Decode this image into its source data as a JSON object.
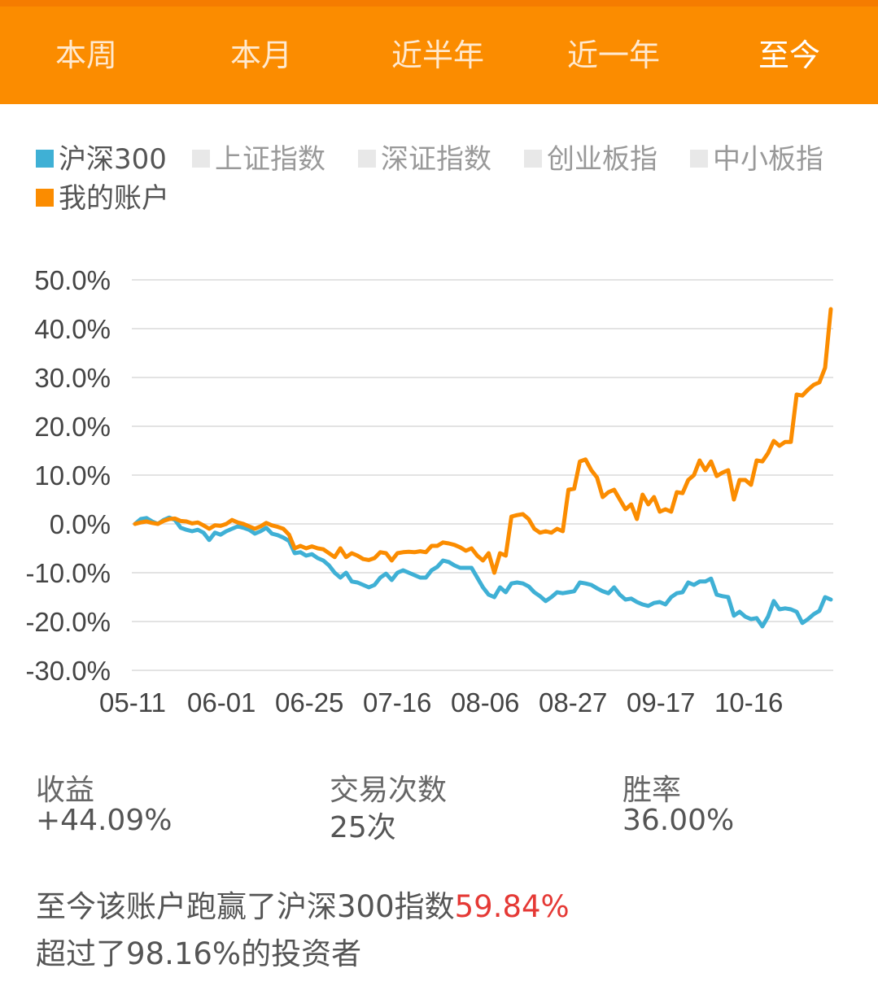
{
  "tabs": [
    {
      "label": "本周",
      "active": false
    },
    {
      "label": "本月",
      "active": false
    },
    {
      "label": "近半年",
      "active": false
    },
    {
      "label": "近一年",
      "active": false
    },
    {
      "label": "至今",
      "active": true
    }
  ],
  "colors": {
    "accent": "#fb8c00",
    "index": "#3fb0d5",
    "account": "#fb8c00",
    "inactive": "#e8e8e8",
    "highlight": "#e53935"
  },
  "legend": [
    {
      "label": "沪深300",
      "color": "#3fb0d5",
      "active": true
    },
    {
      "label": "上证指数",
      "color": "#e8e8e8",
      "active": false
    },
    {
      "label": "深证指数",
      "color": "#e8e8e8",
      "active": false
    },
    {
      "label": "创业板指",
      "color": "#e8e8e8",
      "active": false
    },
    {
      "label": "中小板指",
      "color": "#e8e8e8",
      "active": false
    },
    {
      "label": "我的账户",
      "color": "#fb8c00",
      "active": true
    }
  ],
  "chart_data": {
    "type": "line",
    "ylim": [
      -30,
      50
    ],
    "y_ticks": [
      "50.0%",
      "40.0%",
      "30.0%",
      "20.0%",
      "10.0%",
      "0.0%",
      "-10.0%",
      "-20.0%",
      "-30.0%"
    ],
    "y_tick_values": [
      50,
      40,
      30,
      20,
      10,
      0,
      -10,
      -20,
      -30
    ],
    "x_tick_labels": [
      "05-11",
      "06-01",
      "06-25",
      "07-16",
      "08-06",
      "08-27",
      "09-17",
      "10-16"
    ],
    "grid": true,
    "series": [
      {
        "name": "沪深300",
        "color": "#3fb0d5",
        "values": [
          0.0,
          1.0,
          1.2,
          0.5,
          0.0,
          0.8,
          1.3,
          0.8,
          -0.8,
          -1.2,
          -1.5,
          -1.2,
          -1.8,
          -3.3,
          -1.8,
          -2.2,
          -1.5,
          -1.0,
          -0.5,
          -0.8,
          -1.2,
          -2.0,
          -1.5,
          -0.8,
          -2.0,
          -2.3,
          -2.8,
          -3.5,
          -6.0,
          -5.8,
          -6.5,
          -6.2,
          -7.0,
          -7.5,
          -8.5,
          -10.0,
          -11.0,
          -10.0,
          -11.8,
          -12.0,
          -12.5,
          -13.0,
          -12.5,
          -11.0,
          -10.2,
          -11.5,
          -10.0,
          -9.5,
          -10.0,
          -10.5,
          -11.0,
          -11.0,
          -9.5,
          -8.8,
          -7.5,
          -7.8,
          -8.5,
          -9.0,
          -9.0,
          -9.0,
          -11.0,
          -13.0,
          -14.5,
          -15.0,
          -13.0,
          -14.0,
          -12.2,
          -12.0,
          -12.2,
          -12.8,
          -14.0,
          -14.8,
          -15.8,
          -15.0,
          -14.0,
          -14.2,
          -14.0,
          -13.8,
          -12.0,
          -12.2,
          -12.5,
          -13.2,
          -13.8,
          -14.2,
          -13.0,
          -14.5,
          -15.5,
          -15.3,
          -16.0,
          -16.5,
          -16.8,
          -16.2,
          -16.0,
          -16.5,
          -15.0,
          -14.2,
          -14.0,
          -12.0,
          -12.5,
          -11.8,
          -11.8,
          -11.2,
          -14.5,
          -14.8,
          -15.0,
          -18.8,
          -18.0,
          -19.0,
          -19.5,
          -19.3,
          -21.0,
          -19.0,
          -15.8,
          -17.5,
          -17.3,
          -17.5,
          -18.0,
          -20.3,
          -19.5,
          -18.5,
          -17.8,
          -15.0,
          -15.5
        ]
      },
      {
        "name": "我的账户",
        "color": "#fb8c00",
        "values": [
          0.0,
          0.3,
          0.5,
          0.2,
          0.0,
          0.6,
          1.0,
          1.1,
          0.6,
          0.5,
          0.1,
          0.3,
          -0.3,
          -1.0,
          -0.3,
          -0.4,
          0.0,
          0.8,
          0.3,
          0.0,
          -0.5,
          -1.0,
          -0.5,
          0.2,
          -0.3,
          -0.6,
          -1.0,
          -2.2,
          -5.0,
          -4.5,
          -5.0,
          -4.6,
          -5.0,
          -5.2,
          -6.0,
          -6.8,
          -5.0,
          -6.8,
          -6.0,
          -6.5,
          -7.2,
          -7.4,
          -7.0,
          -5.8,
          -6.0,
          -7.5,
          -6.0,
          -5.8,
          -5.7,
          -5.8,
          -5.6,
          -5.8,
          -4.5,
          -4.5,
          -3.8,
          -4.0,
          -4.3,
          -4.8,
          -5.5,
          -5.0,
          -6.5,
          -7.5,
          -6.0,
          -10.0,
          -6.0,
          -6.5,
          1.5,
          1.8,
          2.0,
          1.0,
          -1.0,
          -1.8,
          -1.5,
          -1.8,
          -1.0,
          -1.5,
          7.0,
          7.2,
          12.8,
          13.2,
          11.0,
          9.5,
          5.5,
          6.5,
          7.0,
          5.0,
          3.0,
          4.0,
          1.0,
          6.0,
          4.0,
          5.5,
          2.5,
          3.0,
          2.5,
          6.5,
          6.3,
          9.0,
          10.0,
          13.0,
          11.0,
          12.8,
          9.8,
          10.5,
          11.0,
          5.0,
          9.0,
          9.0,
          8.0,
          13.0,
          12.8,
          14.5,
          17.0,
          16.0,
          16.8,
          16.8,
          26.5,
          26.3,
          27.5,
          28.5,
          29.0,
          32.0,
          44.0
        ]
      }
    ]
  },
  "stats": [
    {
      "label": "收益",
      "value": "+44.09%"
    },
    {
      "label": "交易次数",
      "value": "25次"
    },
    {
      "label": "胜率",
      "value": "36.00%"
    }
  ],
  "summary": {
    "line1_prefix": "至今该账户跑赢了沪深300指数",
    "line1_value": "59.84%",
    "line2": "超过了98.16%的投资者"
  }
}
